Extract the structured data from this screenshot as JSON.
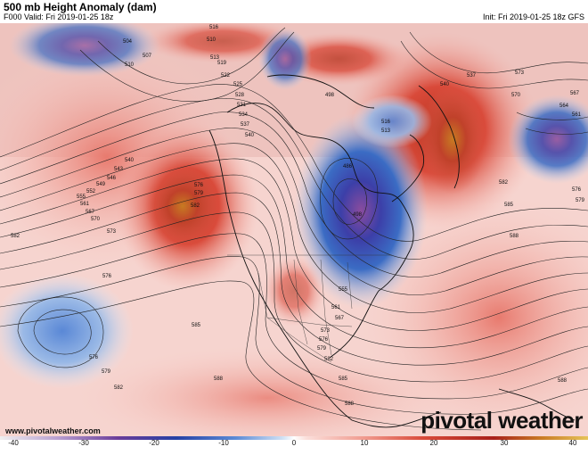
{
  "header": {
    "title": "500 mb Height Anomaly (dam)",
    "valid": "F000 Valid: Fri 2019-01-25 18z",
    "init": "Init: Fri 2019-01-25 18z GFS"
  },
  "footer": {
    "url": "www.pivotalweather.com",
    "brand": "pivotal weather"
  },
  "colorbar": {
    "ticks": [
      "-40",
      "-30",
      "-20",
      "-10",
      "0",
      "10",
      "20",
      "30",
      "40"
    ],
    "colors": [
      "#f4f4f4",
      "#5d3d8b",
      "#1c3fa8",
      "#4c7fd0",
      "#a8c8ea",
      "#ffffff",
      "#f2b0a8",
      "#d9443a",
      "#b0221a",
      "#c07820"
    ]
  },
  "contour_labels": [
    "516",
    "510",
    "504",
    "513",
    "519",
    "522",
    "525",
    "528",
    "531",
    "534",
    "537",
    "540",
    "543",
    "546",
    "549",
    "552",
    "555",
    "558",
    "561",
    "564",
    "567",
    "570",
    "573",
    "576",
    "579",
    "582",
    "585",
    "588"
  ]
}
